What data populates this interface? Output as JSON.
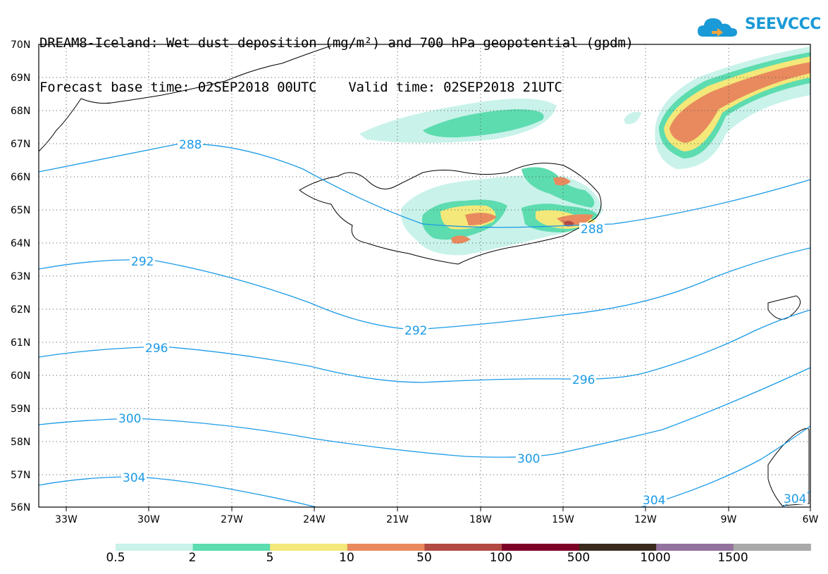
{
  "header": {
    "title_line1": "DREAM8-Iceland: Wet dust deposition (mg/m²) and 700 hPa geopotential (gpdm)",
    "title_line2": "Forecast base time: 02SEP2018 00UTC    Valid time: 02SEP2018 21UTC"
  },
  "logo": {
    "text": "SEEVCCC",
    "icon": "cloud-icon",
    "color": "#1a9ad6"
  },
  "axes": {
    "lat_labels": [
      "70N",
      "69N",
      "68N",
      "67N",
      "66N",
      "65N",
      "64N",
      "63N",
      "62N",
      "61N",
      "60N",
      "59N",
      "58N",
      "57N",
      "56N"
    ],
    "lon_labels": [
      "33W",
      "30W",
      "27W",
      "24W",
      "21W",
      "18W",
      "15W",
      "12W",
      "9W",
      "6W"
    ]
  },
  "contours": {
    "color": "#1a9ae6",
    "labels": [
      "288",
      "292",
      "296",
      "300",
      "304",
      "288",
      "292",
      "296",
      "300",
      "304",
      "304"
    ]
  },
  "legend": {
    "colors": [
      "#c9f2ea",
      "#5ddcaf",
      "#f3e879",
      "#e88a5e",
      "#b14a43",
      "#7d0026",
      "#3b2a1c",
      "#94729e",
      "#a9a9a9"
    ],
    "labels": [
      "0.5",
      "2",
      "5",
      "10",
      "50",
      "100",
      "500",
      "1000",
      "1500"
    ]
  }
}
